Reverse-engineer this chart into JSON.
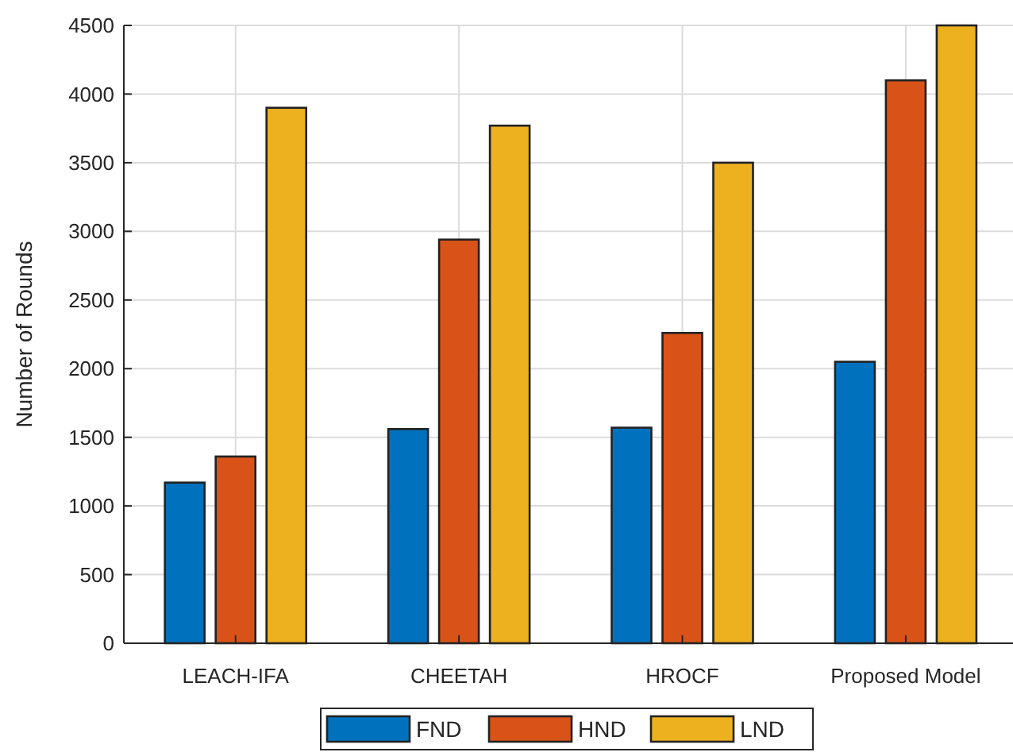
{
  "chart_data": {
    "type": "bar",
    "ylabel": "Number of Rounds",
    "categories": [
      "LEACH-IFA",
      "CHEETAH",
      "HROCF",
      "Proposed Model"
    ],
    "series": [
      {
        "name": "FND",
        "color": "#0072bd",
        "values": [
          1170,
          1560,
          1570,
          2050
        ]
      },
      {
        "name": "HND",
        "color": "#d95319",
        "values": [
          1360,
          2940,
          2260,
          4100
        ]
      },
      {
        "name": "LND",
        "color": "#edb120",
        "values": [
          3900,
          3770,
          3500,
          4500
        ]
      }
    ],
    "ylim": [
      0,
      4500
    ],
    "yticks": [
      0,
      500,
      1000,
      1500,
      2000,
      2500,
      3000,
      3500,
      4000,
      4500
    ],
    "grid": true,
    "legend": "bottom"
  }
}
